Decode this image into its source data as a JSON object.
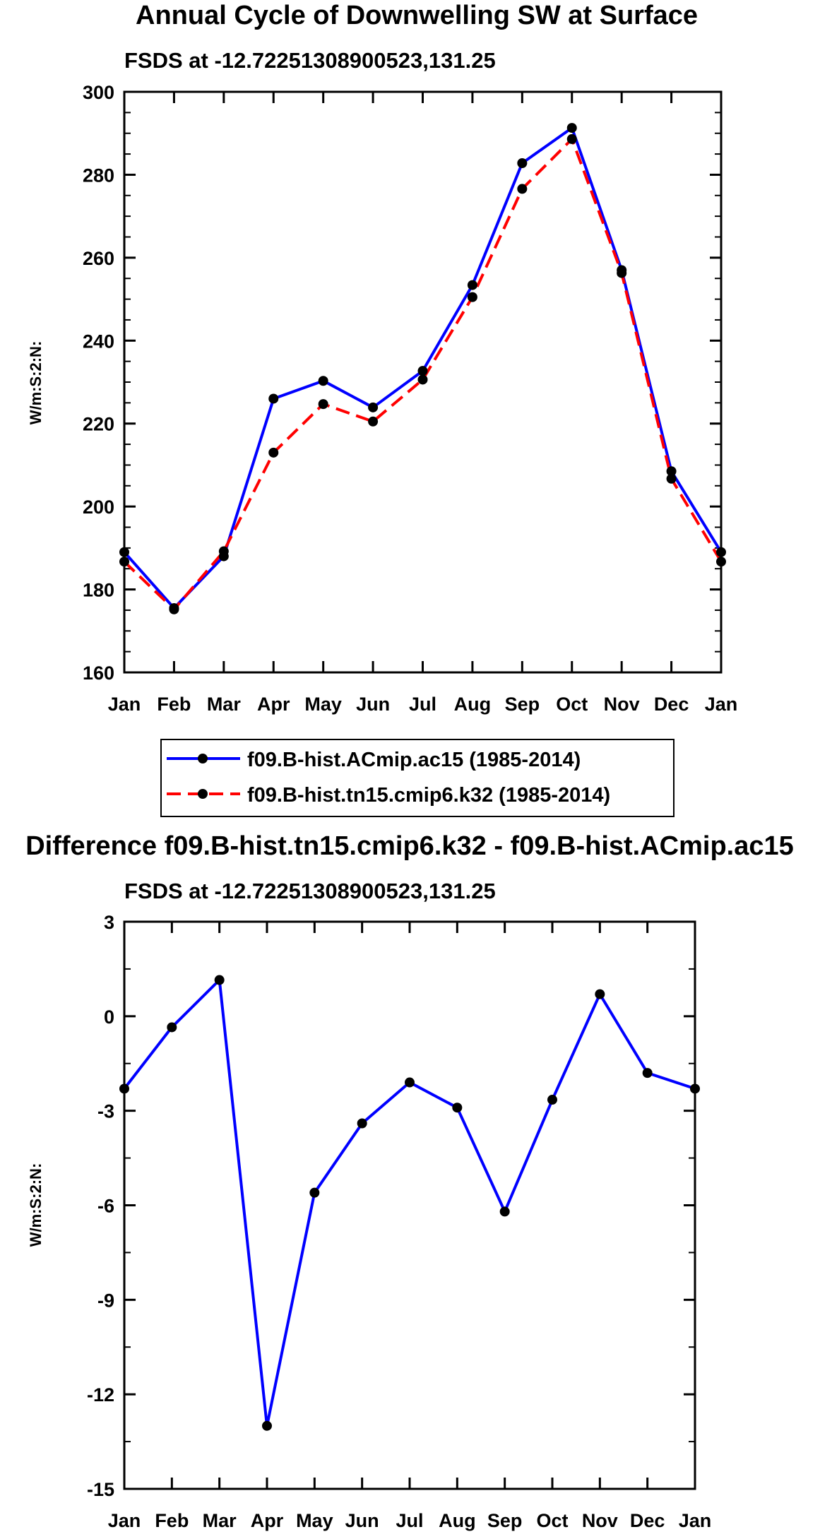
{
  "chart_data": [
    {
      "type": "line",
      "title": "Annual Cycle of Downwelling SW at Surface",
      "subtitle": "FSDS at -12.72251308900523,131.25",
      "ylabel": "W/m:S:2:N:",
      "xlabel": "",
      "categories": [
        "Jan",
        "Feb",
        "Mar",
        "Apr",
        "May",
        "Jun",
        "Jul",
        "Aug",
        "Sep",
        "Oct",
        "Nov",
        "Dec",
        "Jan"
      ],
      "ylim": [
        160,
        300
      ],
      "yticks": [
        "160",
        "180",
        "200",
        "220",
        "240",
        "260",
        "280",
        "300"
      ],
      "series": [
        {
          "name": "f09.B-hist.ACmip.ac15 (1985-2014)",
          "color": "#0000ff",
          "dash": "solid",
          "values": [
            189.0,
            175.5,
            188.0,
            226.0,
            230.3,
            223.9,
            232.7,
            253.4,
            282.8,
            291.3,
            257.0,
            208.5,
            189.0
          ]
        },
        {
          "name": "f09.B-hist.tn15.cmip6.k32 (1985-2014)",
          "color": "#ff0000",
          "dash": "dashed",
          "values": [
            186.7,
            175.2,
            189.2,
            213.0,
            224.7,
            220.5,
            230.6,
            250.5,
            276.6,
            288.6,
            256.3,
            206.7,
            186.7
          ]
        }
      ],
      "legend": "below"
    },
    {
      "type": "line",
      "title": "Difference f09.B-hist.tn15.cmip6.k32 - f09.B-hist.ACmip.ac15",
      "subtitle": "FSDS at -12.72251308900523,131.25",
      "ylabel": "W/m:S:2:N:",
      "xlabel": "",
      "categories": [
        "Jan",
        "Feb",
        "Mar",
        "Apr",
        "May",
        "Jun",
        "Jul",
        "Aug",
        "Sep",
        "Oct",
        "Nov",
        "Dec",
        "Jan"
      ],
      "ylim": [
        -15,
        3
      ],
      "yticks": [
        "-15",
        "-12",
        "-9",
        "-6",
        "-3",
        "0",
        "3"
      ],
      "series": [
        {
          "name": "difference",
          "color": "#0000ff",
          "dash": "solid",
          "values": [
            -2.3,
            -0.35,
            1.15,
            -13.0,
            -5.6,
            -3.4,
            -2.1,
            -2.9,
            -6.2,
            -2.65,
            0.7,
            -1.8,
            -2.3
          ]
        }
      ]
    }
  ]
}
